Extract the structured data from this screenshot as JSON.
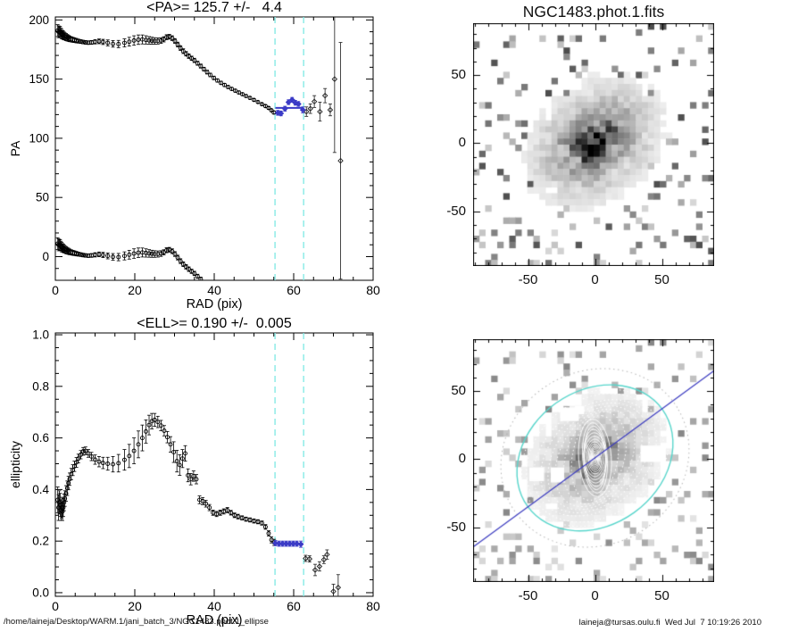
{
  "footer": {
    "path": "/home/laineja/Desktop/WARM.1/jani_batch_3/NGC1483.phot.1_ellipse",
    "signature": "laineja@tursas.oulu.fi  Wed Jul  7 10:19:26 2010"
  },
  "colors": {
    "accent_blue": "#3b3bc6",
    "guide_cyan": "#7de9e3",
    "contour_cyan": "#58d6cc",
    "pa_line_blue": "#3b3bc0",
    "contour_white": "#ffffff",
    "marker_black": "#000000",
    "background": "#ffffff"
  },
  "chart_data": [
    {
      "id": "pa",
      "type": "scatter",
      "title": "<PA>= 125.7 +/-   4.4",
      "xlabel": "RAD (pix)",
      "ylabel": "PA",
      "xlim": [
        0,
        80
      ],
      "ylim": [
        -20,
        202.5
      ],
      "xticks": [
        0,
        20,
        40,
        60,
        80
      ],
      "xtick_labels": [
        "0",
        "20",
        "40",
        "60",
        "80"
      ],
      "yticks": [
        0,
        50,
        100,
        150,
        200
      ],
      "ytick_labels": [
        "0",
        "50",
        "100",
        "150",
        "200"
      ],
      "xminor": 5,
      "yminor": 10,
      "grid": false,
      "wrap_offset": -180,
      "guides_x": [
        55.3,
        62.5
      ],
      "fit": {
        "value": 125.7,
        "from": 55.4,
        "to": 62.3
      },
      "series": [
        [
          0.6,
          191,
          5
        ],
        [
          0.8,
          190,
          5
        ],
        [
          1.0,
          189.5,
          4.5
        ],
        [
          1.2,
          190,
          4.5
        ],
        [
          1.4,
          189,
          4
        ],
        [
          1.6,
          188,
          4
        ],
        [
          1.8,
          187.5,
          3.5
        ],
        [
          2.0,
          187,
          3.5
        ],
        [
          2.2,
          186.5,
          3.2
        ],
        [
          2.4,
          186,
          3
        ],
        [
          2.7,
          185.5,
          3
        ],
        [
          3.0,
          185,
          2.8
        ],
        [
          3.3,
          184.5,
          2.6
        ],
        [
          3.6,
          184,
          2.4
        ],
        [
          4.0,
          183.6,
          2.2
        ],
        [
          4.4,
          183.2,
          2.1
        ],
        [
          4.8,
          182.9,
          2
        ],
        [
          5.3,
          182.5,
          1.9
        ],
        [
          5.8,
          182.1,
          1.7
        ],
        [
          6.4,
          181.7,
          1.6
        ],
        [
          7.0,
          181.3,
          1.5
        ],
        [
          7.6,
          181,
          1.5
        ],
        [
          8.3,
          180.8,
          1.5
        ],
        [
          9.1,
          181,
          1.6
        ],
        [
          10.0,
          181.5,
          1.8
        ],
        [
          11.0,
          181.9,
          2
        ],
        [
          12.0,
          181.4,
          2.2
        ],
        [
          13.2,
          180.6,
          2.5
        ],
        [
          14.5,
          179.8,
          2.8
        ],
        [
          15.9,
          179.6,
          3.1
        ],
        [
          17.4,
          180.6,
          3.4
        ],
        [
          18.6,
          181.6,
          3.7
        ],
        [
          19.8,
          182.6,
          4
        ],
        [
          20.9,
          183.3,
          4
        ],
        [
          21.9,
          183.5,
          3.8
        ],
        [
          22.8,
          183.1,
          3.5
        ],
        [
          23.6,
          182.7,
          3.2
        ],
        [
          24.3,
          182.4,
          3
        ],
        [
          25.0,
          182.2,
          2.8
        ],
        [
          25.8,
          182.2,
          2.6
        ],
        [
          26.6,
          182.6,
          2.4
        ],
        [
          27.3,
          183.6,
          2.2
        ],
        [
          28.0,
          185.4,
          2.1
        ],
        [
          28.7,
          185.8,
          2
        ],
        [
          29.4,
          184.6,
          2
        ],
        [
          30.1,
          182.2,
          2
        ],
        [
          30.8,
          179.2,
          2
        ],
        [
          31.5,
          176.2,
          2
        ],
        [
          32.2,
          173.6,
          2
        ],
        [
          32.9,
          171.4,
          1.9
        ],
        [
          33.6,
          169.4,
          1.9
        ],
        [
          34.3,
          167.6,
          1.8
        ],
        [
          35.0,
          165.8,
          1.8
        ],
        [
          35.8,
          163.4,
          1.7
        ],
        [
          36.6,
          161,
          1.7
        ],
        [
          37.4,
          158.4,
          1.6
        ],
        [
          38.2,
          155.9,
          1.6
        ],
        [
          39.0,
          153.5,
          1.5
        ],
        [
          39.9,
          151,
          1.5
        ],
        [
          40.8,
          148.8,
          1.4
        ],
        [
          41.7,
          146.8,
          1.4
        ],
        [
          42.6,
          145,
          1.3
        ],
        [
          43.5,
          143.3,
          1.3
        ],
        [
          44.4,
          141.7,
          1.2
        ],
        [
          45.3,
          140.2,
          1.2
        ],
        [
          46.2,
          138.7,
          1.2
        ],
        [
          47.1,
          137.2,
          1.1
        ],
        [
          48.0,
          135.7,
          1.1
        ],
        [
          49.0,
          134.1,
          1.1
        ],
        [
          50.0,
          132.4,
          1.0
        ],
        [
          51.0,
          130.6,
          1.0
        ],
        [
          52.0,
          128.8,
          1.0
        ],
        [
          52.9,
          127.2,
          1.0
        ],
        [
          53.7,
          125.6,
          1.0
        ],
        [
          54.4,
          123.6,
          1.1
        ],
        [
          55.0,
          121.8,
          1.3
        ]
      ],
      "selected": [
        [
          56.0,
          121.5,
          2
        ],
        [
          56.8,
          121,
          2
        ],
        [
          57.8,
          125,
          2
        ],
        [
          58.7,
          130.5,
          2
        ],
        [
          59.6,
          132.5,
          2
        ],
        [
          60.4,
          130,
          2
        ],
        [
          61.2,
          129,
          2
        ],
        [
          62.3,
          124,
          2.5
        ]
      ],
      "outer": [
        [
          63.2,
          122.5,
          4
        ],
        [
          64.2,
          125,
          4
        ],
        [
          65.2,
          131,
          5
        ],
        [
          66.6,
          122.5,
          8
        ],
        [
          67.9,
          136,
          6
        ],
        [
          69.2,
          124,
          5
        ],
        [
          70.3,
          150,
          62
        ],
        [
          71.8,
          81,
          100
        ]
      ]
    },
    {
      "id": "ell",
      "type": "scatter",
      "title": "<ELL>= 0.190 +/-  0.005",
      "xlabel": "RAD (pix)",
      "ylabel": "ellipticity",
      "xlim": [
        0,
        80
      ],
      "ylim": [
        -0.014,
        1.007
      ],
      "xticks": [
        0,
        20,
        40,
        60,
        80
      ],
      "xtick_labels": [
        "0",
        "20",
        "40",
        "60",
        "80"
      ],
      "yticks": [
        0,
        0.2,
        0.4,
        0.6,
        0.8,
        1.0
      ],
      "ytick_labels": [
        "0.0",
        "0.2",
        "0.4",
        "0.6",
        "0.8",
        "1.0"
      ],
      "xminor": 5,
      "yminor": 0.05,
      "grid": false,
      "wrap_offset": null,
      "guides_x": [
        55.3,
        62.5
      ],
      "fit": {
        "value": 0.19,
        "from": 55.2,
        "to": 62.3
      },
      "series": [
        [
          0.6,
          0.36,
          0.05
        ],
        [
          0.8,
          0.33,
          0.05
        ],
        [
          1.0,
          0.35,
          0.045
        ],
        [
          1.2,
          0.34,
          0.045
        ],
        [
          1.4,
          0.32,
          0.04
        ],
        [
          1.6,
          0.33,
          0.04
        ],
        [
          1.8,
          0.315,
          0.035
        ],
        [
          2.0,
          0.33,
          0.035
        ],
        [
          2.2,
          0.35,
          0.032
        ],
        [
          2.4,
          0.365,
          0.03
        ],
        [
          2.7,
          0.385,
          0.03
        ],
        [
          3.0,
          0.405,
          0.028
        ],
        [
          3.3,
          0.425,
          0.026
        ],
        [
          3.6,
          0.44,
          0.024
        ],
        [
          4.0,
          0.46,
          0.022
        ],
        [
          4.4,
          0.475,
          0.021
        ],
        [
          4.8,
          0.49,
          0.02
        ],
        [
          5.3,
          0.505,
          0.019
        ],
        [
          5.8,
          0.52,
          0.017
        ],
        [
          6.4,
          0.535,
          0.016
        ],
        [
          7.0,
          0.548,
          0.015
        ],
        [
          7.6,
          0.55,
          0.015
        ],
        [
          8.3,
          0.54,
          0.015
        ],
        [
          9.1,
          0.528,
          0.016
        ],
        [
          10.0,
          0.516,
          0.018
        ],
        [
          11.0,
          0.508,
          0.02
        ],
        [
          12.0,
          0.503,
          0.022
        ],
        [
          13.2,
          0.5,
          0.025
        ],
        [
          14.5,
          0.498,
          0.03
        ],
        [
          15.9,
          0.502,
          0.034
        ],
        [
          17.4,
          0.515,
          0.04
        ],
        [
          18.6,
          0.53,
          0.045
        ],
        [
          19.8,
          0.55,
          0.05
        ],
        [
          20.9,
          0.575,
          0.052
        ],
        [
          21.9,
          0.6,
          0.05
        ],
        [
          22.8,
          0.625,
          0.045
        ],
        [
          23.6,
          0.65,
          0.038
        ],
        [
          24.3,
          0.665,
          0.03
        ],
        [
          25.0,
          0.67,
          0.025
        ],
        [
          25.8,
          0.662,
          0.022
        ],
        [
          26.6,
          0.648,
          0.02
        ],
        [
          27.4,
          0.628,
          0.02
        ],
        [
          28.2,
          0.603,
          0.022
        ],
        [
          29.0,
          0.575,
          0.03
        ],
        [
          29.8,
          0.545,
          0.04
        ],
        [
          30.6,
          0.51,
          0.042
        ],
        [
          31.3,
          0.495,
          0.04
        ],
        [
          32.0,
          0.52,
          0.035
        ],
        [
          32.7,
          0.54,
          0.03
        ],
        [
          33.4,
          0.455,
          0.025
        ],
        [
          34.1,
          0.44,
          0.022
        ],
        [
          34.8,
          0.452,
          0.02
        ],
        [
          35.5,
          0.44,
          0.018
        ],
        [
          36.3,
          0.36,
          0.015
        ],
        [
          37.1,
          0.355,
          0.014
        ],
        [
          37.9,
          0.345,
          0.013
        ],
        [
          38.8,
          0.33,
          0.012
        ],
        [
          39.7,
          0.31,
          0.01
        ],
        [
          40.6,
          0.305,
          0.01
        ],
        [
          41.5,
          0.31,
          0.01
        ],
        [
          42.4,
          0.315,
          0.01
        ],
        [
          43.3,
          0.32,
          0.01
        ],
        [
          44.2,
          0.31,
          0.009
        ],
        [
          45.1,
          0.3,
          0.009
        ],
        [
          46.0,
          0.295,
          0.009
        ],
        [
          47.0,
          0.29,
          0.008
        ],
        [
          48.0,
          0.285,
          0.008
        ],
        [
          49.0,
          0.282,
          0.008
        ],
        [
          50.0,
          0.278,
          0.008
        ],
        [
          51.0,
          0.275,
          0.008
        ],
        [
          52.0,
          0.27,
          0.008
        ],
        [
          52.9,
          0.255,
          0.009
        ],
        [
          53.7,
          0.23,
          0.01
        ],
        [
          54.4,
          0.205,
          0.012
        ],
        [
          55.1,
          0.195,
          0.012
        ]
      ],
      "selected": [
        [
          55.4,
          0.192,
          0.01
        ],
        [
          56.3,
          0.19,
          0.01
        ],
        [
          57.2,
          0.19,
          0.01
        ],
        [
          58.1,
          0.19,
          0.01
        ],
        [
          59.0,
          0.19,
          0.01
        ],
        [
          59.9,
          0.19,
          0.01
        ],
        [
          60.8,
          0.19,
          0.01
        ],
        [
          61.8,
          0.188,
          0.012
        ]
      ],
      "outer": [
        [
          63.0,
          0.133,
          0.012
        ],
        [
          64.0,
          0.131,
          0.012
        ],
        [
          65.4,
          0.088,
          0.022
        ],
        [
          66.5,
          0.102,
          0.018
        ],
        [
          67.6,
          0.128,
          0.015
        ],
        [
          68.4,
          0.148,
          0.018
        ],
        [
          70.0,
          0.005,
          0.028
        ],
        [
          71.2,
          0.02,
          0.05
        ]
      ]
    },
    {
      "id": "image",
      "type": "heatmap",
      "title": "NGC1483.phot.1.fits",
      "xlim": [
        -91,
        89
      ],
      "ylim": [
        -90,
        88
      ],
      "xticks": [
        -50,
        0,
        50
      ],
      "xtick_labels": [
        "-50",
        "0",
        "50"
      ],
      "yticks": [
        50,
        0,
        -50
      ],
      "ytick_labels": [
        "50",
        "0",
        "-50"
      ],
      "minor": 10,
      "galaxy": {
        "seed": 7,
        "ellipticity": 0.25,
        "angle_deg": 35,
        "scale_len": 26,
        "center": [
          0,
          1
        ]
      },
      "brightness": 1.0
    },
    {
      "id": "overlay",
      "type": "heatmap",
      "title": "",
      "xlim": [
        -91,
        89
      ],
      "ylim": [
        -90,
        88
      ],
      "xticks": [
        -50,
        0,
        50
      ],
      "xtick_labels": [
        "-50",
        "0",
        "50"
      ],
      "yticks": [
        50,
        0,
        -50
      ],
      "ytick_labels": [
        "50",
        "0",
        "-50"
      ],
      "minor": 10,
      "brightness": 0.68,
      "ellipses": [
        [
          1.2,
          0.3,
          187,
          0
        ],
        [
          1.8,
          0.34,
          186,
          0
        ],
        [
          2.5,
          0.39,
          185,
          0
        ],
        [
          3.3,
          0.44,
          184,
          0
        ],
        [
          4.2,
          0.48,
          183,
          0
        ],
        [
          5.2,
          0.51,
          182,
          0
        ],
        [
          6.3,
          0.53,
          181,
          0
        ],
        [
          7.5,
          0.55,
          181,
          0
        ],
        [
          8.8,
          0.54,
          181,
          0
        ],
        [
          10.3,
          0.52,
          182,
          0
        ],
        [
          12.0,
          0.51,
          181,
          0
        ],
        [
          14.0,
          0.5,
          180,
          0
        ],
        [
          16.3,
          0.51,
          181,
          0
        ],
        [
          18.8,
          0.545,
          182,
          0
        ],
        [
          21.3,
          0.615,
          183,
          0
        ],
        [
          23.8,
          0.665,
          183,
          0
        ],
        [
          26.3,
          0.65,
          184,
          0
        ],
        [
          29.0,
          0.58,
          184,
          0
        ],
        [
          32.0,
          0.47,
          170,
          1
        ],
        [
          35.5,
          0.39,
          162,
          1
        ],
        [
          39.0,
          0.33,
          151,
          1
        ],
        [
          43.0,
          0.31,
          143,
          1
        ],
        [
          47.0,
          0.29,
          136,
          1
        ],
        [
          51.0,
          0.27,
          130,
          1
        ],
        [
          55.0,
          0.21,
          127,
          1
        ],
        [
          58.5,
          0.2,
          126,
          1
        ],
        [
          72.0,
          0.1,
          120,
          2
        ]
      ],
      "outer_ellipse": {
        "a": 62,
        "ell": 0.19,
        "pa": 125.7
      },
      "pa_line": {
        "angle_deg": 35.7
      },
      "masks": [
        [
          -26,
          28,
          14,
          10
        ],
        [
          -15,
          33,
          7,
          6
        ],
        [
          -49,
          -16,
          11,
          10
        ],
        [
          -33,
          -17,
          10,
          11
        ],
        [
          34,
          -2,
          19,
          12
        ],
        [
          18,
          52,
          7,
          6
        ]
      ]
    }
  ]
}
